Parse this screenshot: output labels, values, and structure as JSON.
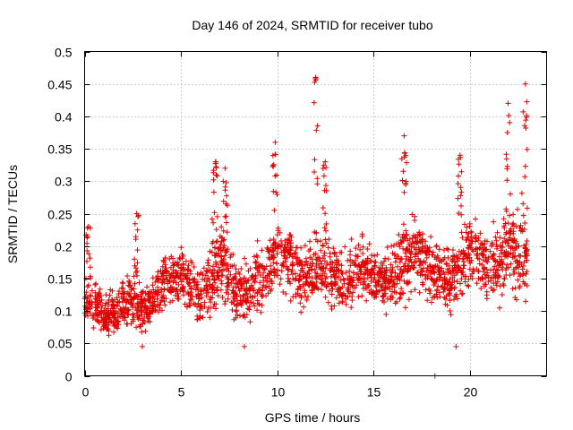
{
  "chart_data": {
    "type": "scatter",
    "title": "Day 146 of 2024, SRMTID for receiver tubo",
    "xlabel": "GPS time / hours",
    "ylabel": "SRMTID / TECUs",
    "xlim": [
      0,
      24
    ],
    "ylim": [
      0,
      0.5
    ],
    "x_ticks": [
      0,
      5,
      10,
      15,
      20
    ],
    "x_tick_labels": [
      "0",
      "5",
      "10",
      "15",
      "20"
    ],
    "y_ticks": [
      0,
      0.05,
      0.1,
      0.15,
      0.2,
      0.25,
      0.3,
      0.35,
      0.4,
      0.45,
      0.5
    ],
    "y_tick_labels": [
      "0",
      "0.05",
      "0.1",
      "0.15",
      "0.2",
      "0.25",
      "0.3",
      "0.35",
      "0.4",
      "0.45",
      "0.5"
    ],
    "grid": true,
    "marker": "+",
    "series_color": "#e00000",
    "envelope": {
      "x": [
        0,
        0.5,
        1,
        1.5,
        2,
        2.5,
        3,
        3.5,
        4,
        4.5,
        5,
        5.5,
        6,
        6.5,
        7,
        7.5,
        8,
        8.5,
        9,
        9.5,
        10,
        10.5,
        11,
        11.5,
        12,
        12.5,
        13,
        13.5,
        14,
        14.5,
        15,
        15.5,
        16,
        16.5,
        17,
        17.5,
        18,
        18.5,
        19,
        19.5,
        20,
        20.5,
        21,
        21.5,
        22,
        22.5,
        23
      ],
      "low": [
        0.07,
        0.07,
        0.055,
        0.06,
        0.06,
        0.06,
        0.05,
        0.07,
        0.08,
        0.09,
        0.1,
        0.09,
        0.06,
        0.08,
        0.1,
        0.09,
        0.06,
        0.06,
        0.07,
        0.1,
        0.1,
        0.11,
        0.09,
        0.08,
        0.09,
        0.1,
        0.09,
        0.08,
        0.1,
        0.11,
        0.09,
        0.09,
        0.09,
        0.1,
        0.09,
        0.1,
        0.09,
        0.09,
        0.06,
        0.08,
        0.1,
        0.1,
        0.09,
        0.08,
        0.1,
        0.08,
        0.1
      ],
      "mid": [
        0.11,
        0.11,
        0.09,
        0.1,
        0.11,
        0.12,
        0.1,
        0.11,
        0.14,
        0.15,
        0.16,
        0.14,
        0.12,
        0.14,
        0.17,
        0.15,
        0.12,
        0.13,
        0.15,
        0.16,
        0.19,
        0.19,
        0.17,
        0.15,
        0.16,
        0.16,
        0.15,
        0.14,
        0.16,
        0.17,
        0.15,
        0.14,
        0.15,
        0.17,
        0.19,
        0.19,
        0.17,
        0.16,
        0.14,
        0.17,
        0.2,
        0.19,
        0.17,
        0.17,
        0.2,
        0.18,
        0.2
      ],
      "high": [
        0.16,
        0.17,
        0.14,
        0.15,
        0.16,
        0.18,
        0.15,
        0.16,
        0.2,
        0.21,
        0.21,
        0.19,
        0.18,
        0.24,
        0.28,
        0.23,
        0.19,
        0.2,
        0.22,
        0.23,
        0.25,
        0.24,
        0.22,
        0.21,
        0.24,
        0.23,
        0.22,
        0.21,
        0.24,
        0.23,
        0.21,
        0.2,
        0.23,
        0.26,
        0.28,
        0.24,
        0.24,
        0.23,
        0.22,
        0.25,
        0.27,
        0.24,
        0.24,
        0.26,
        0.28,
        0.29,
        0.32
      ]
    },
    "peaks": [
      {
        "x": 0.2,
        "y": 0.23
      },
      {
        "x": 2.7,
        "y": 0.25
      },
      {
        "x": 6.8,
        "y": 0.33
      },
      {
        "x": 7.3,
        "y": 0.32
      },
      {
        "x": 9.9,
        "y": 0.36
      },
      {
        "x": 12.0,
        "y": 0.46
      },
      {
        "x": 12.5,
        "y": 0.33
      },
      {
        "x": 16.6,
        "y": 0.37
      },
      {
        "x": 19.5,
        "y": 0.34
      },
      {
        "x": 22.0,
        "y": 0.42
      },
      {
        "x": 22.9,
        "y": 0.45
      }
    ],
    "outliers": [
      {
        "x": 18.2,
        "y": 0.0
      },
      {
        "x": 19.3,
        "y": 0.045
      },
      {
        "x": 3.0,
        "y": 0.045
      },
      {
        "x": 8.3,
        "y": 0.045
      }
    ],
    "x_range_of_data": [
      0,
      23
    ]
  }
}
